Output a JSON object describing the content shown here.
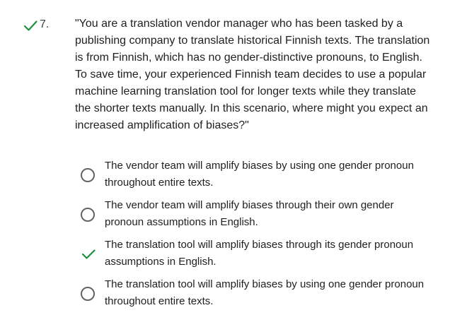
{
  "question": {
    "number": "7.",
    "status_icon": "check-icon",
    "status_color": "#1e8e3e",
    "text": "\"You are a translation vendor manager who has been tasked by a publishing company to translate historical Finnish texts. The translation is from Finnish, which has no gender-distinctive pronouns, to English. To save time, your experienced Finnish team decides to use a popular machine learning translation tool for longer texts while they translate the shorter texts manually. In this scenario, where might you expect an increased amplification of biases?\""
  },
  "options": [
    {
      "label": "The vendor team will amplify biases by using one gender pronoun throughout entire texts.",
      "state": "unselected"
    },
    {
      "label": "The vendor team will amplify biases through their own gender pronoun assumptions in English.",
      "state": "unselected"
    },
    {
      "label": "The translation tool will amplify biases through its gender pronoun assumptions in English.",
      "state": "correct"
    },
    {
      "label": "The translation tool will amplify biases by using one gender pronoun throughout entire texts.",
      "state": "unselected"
    }
  ],
  "colors": {
    "correct": "#1e8e3e",
    "radio_border": "#5f6368",
    "text": "#202124"
  }
}
